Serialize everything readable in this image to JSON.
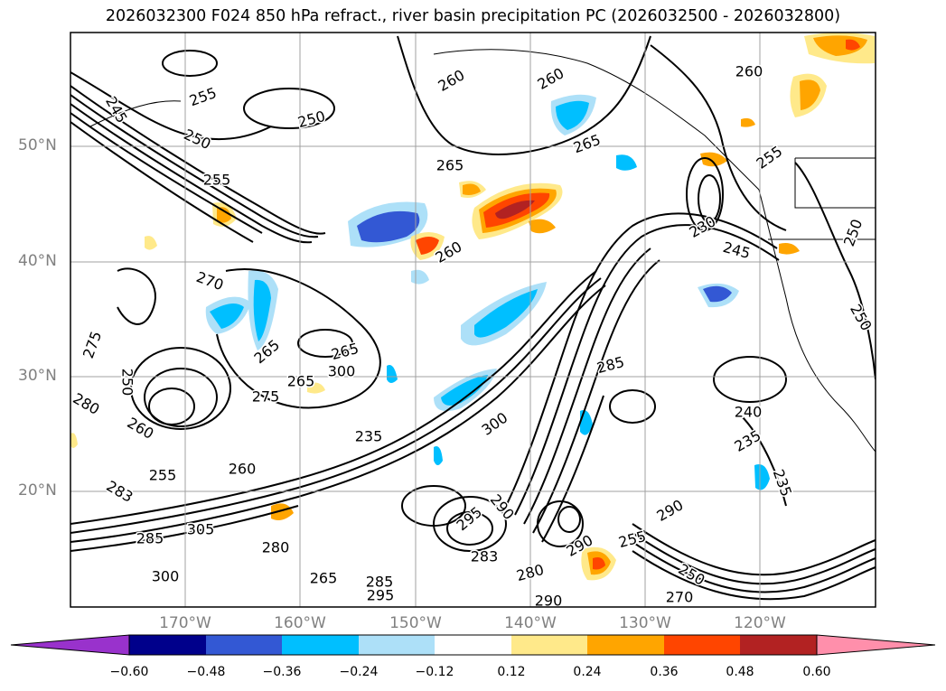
{
  "title": "2026032300 F024 850 hPa refract., river basin precipitation PC (2026032500 - 2026032800)",
  "map": {
    "lat_labels": [
      "50°N",
      "40°N",
      "30°N",
      "20°N"
    ],
    "lon_labels": [
      "170°W",
      "160°W",
      "150°W",
      "140°W",
      "130°W",
      "120°W"
    ],
    "contour_labels": [
      "245",
      "255",
      "250",
      "250",
      "255",
      "260",
      "260",
      "265",
      "265",
      "260",
      "270",
      "275",
      "280",
      "250",
      "260",
      "265",
      "265",
      "275",
      "265",
      "260",
      "255",
      "283",
      "285",
      "280",
      "300",
      "305",
      "265",
      "285",
      "295",
      "300",
      "295",
      "290",
      "283",
      "280",
      "290",
      "255",
      "290",
      "250",
      "270",
      "300",
      "290",
      "285",
      "240",
      "235",
      "235",
      "230",
      "245",
      "255",
      "250",
      "250",
      "235",
      "260"
    ],
    "colors": {
      "line": "#000000",
      "grid": "#a0a0a0",
      "coast": "#000000",
      "neg_strong": "#3358d4",
      "neg_mid": "#00bfff",
      "neg_light": "#ade0f8",
      "pos_light": "#ffe98a",
      "pos_mid": "#ffa500",
      "pos_strong": "#ff4500",
      "pos_max": "#b22222"
    }
  },
  "colorbar": {
    "ticks": [
      "−0.60",
      "−0.48",
      "−0.36",
      "−0.24",
      "−0.12",
      "0.12",
      "0.24",
      "0.36",
      "0.48",
      "0.60"
    ],
    "colors": [
      "#9932cc",
      "#00008b",
      "#3358d4",
      "#00bfff",
      "#ade0f8",
      "#ffffff",
      "#ffe98a",
      "#ffa500",
      "#ff4500",
      "#b22222",
      "#ff8fab"
    ]
  }
}
